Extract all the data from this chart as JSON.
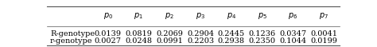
{
  "col_headers": [
    "$p_0$",
    "$p_1$",
    "$p_2$",
    "$p_3$",
    "$p_4$",
    "$p_5$",
    "$p_6$",
    "$p_7$"
  ],
  "row_headers": [
    "R-genotype",
    "r-genotype"
  ],
  "values": [
    [
      "0.0139",
      "0.0819",
      "0.2069",
      "0.2904",
      "0.2445",
      "0.1236",
      "0.0347",
      "0.0041"
    ],
    [
      "0.0027",
      "0.0248",
      "0.0991",
      "0.2203",
      "0.2938",
      "0.2350",
      "0.1044",
      "0.0199"
    ]
  ],
  "background_color": "#ffffff",
  "text_color": "#000000",
  "border_color": "#555555",
  "figsize": [
    4.74,
    0.59
  ],
  "dpi": 100,
  "fontsize": 7.0
}
